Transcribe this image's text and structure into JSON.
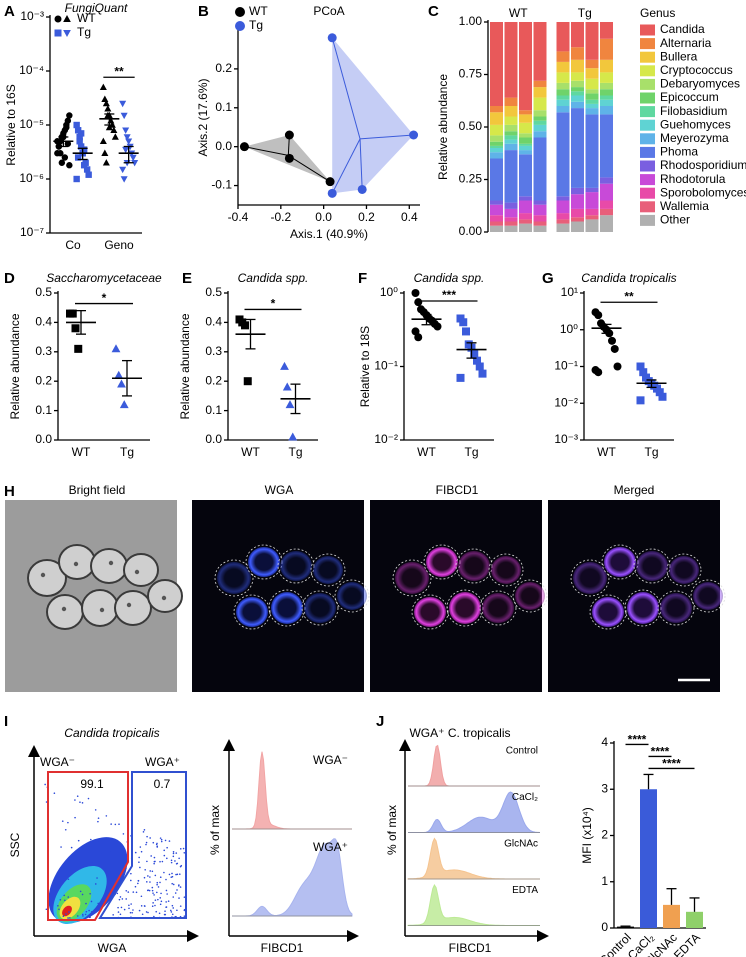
{
  "panel_labels": [
    "A",
    "B",
    "C",
    "D",
    "E",
    "F",
    "G",
    "H",
    "I",
    "J"
  ],
  "chart_data": [
    {
      "type": "dot",
      "title": "FungiQuant",
      "title_style": "italic",
      "y_label": "Relative to 16S",
      "log_y": true,
      "ylim": [
        1e-07,
        0.001
      ],
      "yticks": [
        {
          "value": 0.001,
          "label": "10⁻³"
        },
        {
          "value": 0.0001,
          "label": "10⁻⁴"
        },
        {
          "value": 1e-05,
          "label": "10⁻⁵"
        },
        {
          "value": 1e-06,
          "label": "10⁻⁶"
        },
        {
          "value": 1e-07,
          "label": "10⁻⁷"
        }
      ],
      "categories": [
        "Co",
        "Geno"
      ],
      "legend": "upper left",
      "series": [
        {
          "name": "WT",
          "color": "#000000",
          "markers": [
            "circle",
            "triangle"
          ],
          "values": [
            [
              3e-06,
              4e-06,
              5e-06,
              6e-06,
              7e-06,
              8e-06,
              1e-05,
              1.2e-05,
              1.5e-05,
              5e-06,
              4e-06,
              3e-06,
              2e-06,
              6e-06,
              2.5e-06,
              9e-06,
              4.5e-06,
              1.8e-06
            ],
            [
              5e-05,
              3e-05,
              2.5e-05,
              2e-05,
              1.5e-05,
              1.2e-05,
              1e-05,
              8e-06,
              6e-06,
              5e-06,
              3e-06,
              2e-06,
              1.5e-05,
              9e-06
            ]
          ],
          "means": [
            5e-06,
            1.3e-05
          ],
          "sems": [
            1e-06,
            3e-06
          ]
        },
        {
          "name": "Tg",
          "color": "#3b5bdb",
          "markers": [
            "square",
            "triangle-down"
          ],
          "values": [
            [
              1e-05,
              8e-06,
              6e-06,
              4e-06,
              3e-06,
              3.5e-06,
              2e-06,
              1.5e-06,
              1.2e-06,
              1e-06,
              2.5e-06,
              5e-06,
              7e-06,
              3e-06,
              1.8e-06
            ],
            [
              2.5e-05,
              1.5e-05,
              8e-06,
              6e-06,
              5e-06,
              4e-06,
              3e-06,
              2.5e-06,
              2e-06,
              1.5e-06,
              1e-06,
              3.5e-06,
              2e-06
            ]
          ],
          "means": [
            3e-06,
            3e-06
          ],
          "sems": [
            7e-07,
            1e-06
          ]
        }
      ],
      "annotations": [
        {
          "text": "**",
          "category": 1
        }
      ]
    },
    {
      "type": "scatter",
      "title": "PCoA",
      "x_label": "Axis.1 (40.9%)",
      "y_label": "Axis.2 (17.6%)",
      "xlim": [
        -0.4,
        0.45
      ],
      "ylim": [
        -0.15,
        0.3
      ],
      "xticks": [
        -0.4,
        -0.2,
        {
          "value": 0,
          "label": "0.0"
        },
        0.2,
        0.4
      ],
      "yticks": [
        -0.1,
        {
          "value": 0,
          "label": "0.0"
        },
        0.1,
        0.2
      ],
      "legend": "upper left",
      "series": [
        {
          "name": "WT",
          "color": "#000000",
          "fill": "#bfbfbf",
          "x": [
            -0.37,
            -0.16,
            -0.16,
            0.03
          ],
          "y": [
            0,
            0.03,
            -0.03,
            -0.09
          ]
        },
        {
          "name": "Tg",
          "color": "#3b5bdb",
          "fill": "#c5cdf5",
          "x": [
            0.04,
            0.42,
            0.18,
            0.04
          ],
          "y": [
            0.28,
            0.03,
            -0.11,
            -0.12
          ]
        }
      ]
    },
    {
      "type": "stacked_bar",
      "y_label": "Relative abundance",
      "legend_title": "Genus",
      "legend": "right",
      "ylim": [
        0,
        1
      ],
      "yticks": [
        {
          "value": 0,
          "label": "0.00"
        },
        0.25,
        {
          "value": 0.5,
          "label": "0.50"
        },
        0.75,
        {
          "value": 1,
          "label": "1.00"
        }
      ],
      "categories": [
        null,
        null,
        null,
        null,
        null,
        null,
        null,
        null
      ],
      "groups": [
        {
          "name": "WT",
          "size": 4
        },
        {
          "name": "Tg",
          "size": 4
        }
      ],
      "series": [
        {
          "name": "Candida",
          "color": "#e8595a",
          "values": [
            0.4,
            0.36,
            0.42,
            0.28,
            0.14,
            0.12,
            0.18,
            0.08
          ]
        },
        {
          "name": "Alternaria",
          "color": "#f0853f",
          "values": [
            0.03,
            0.04,
            0.02,
            0.03,
            0.05,
            0.06,
            0.04,
            0.1
          ]
        },
        {
          "name": "Bullera",
          "color": "#f2c73c",
          "values": [
            0.06,
            0.05,
            0.04,
            0.05,
            0.05,
            0.06,
            0.05,
            0.06
          ]
        },
        {
          "name": "Cryptococcus",
          "color": "#d6e84a",
          "values": [
            0.05,
            0.04,
            0.05,
            0.06,
            0.05,
            0.04,
            0.05,
            0.05
          ]
        },
        {
          "name": "Debaryomyces",
          "color": "#a8e06a",
          "values": [
            0.03,
            0.03,
            0.02,
            0.03,
            0.03,
            0.03,
            0.02,
            0.03
          ]
        },
        {
          "name": "Epicoccum",
          "color": "#6fd36a",
          "values": [
            0.02,
            0.02,
            0.03,
            0.02,
            0.03,
            0.02,
            0.03,
            0.03
          ]
        },
        {
          "name": "Filobasidium",
          "color": "#5fd8a0",
          "values": [
            0.01,
            0.02,
            0.01,
            0.02,
            0.02,
            0.02,
            0.02,
            0.02
          ]
        },
        {
          "name": "Guehomyces",
          "color": "#5fd3d3",
          "values": [
            0.02,
            0.02,
            0.02,
            0.03,
            0.03,
            0.03,
            0.02,
            0.03
          ]
        },
        {
          "name": "Meyerozyma",
          "color": "#5fb3e8",
          "values": [
            0.03,
            0.03,
            0.02,
            0.03,
            0.03,
            0.03,
            0.03,
            0.04
          ]
        },
        {
          "name": "Phoma",
          "color": "#5a78e6",
          "values": [
            0.2,
            0.25,
            0.2,
            0.3,
            0.4,
            0.38,
            0.35,
            0.3
          ]
        },
        {
          "name": "Rhodosporidium",
          "color": "#7a5fe0",
          "values": [
            0.02,
            0.03,
            0.02,
            0.02,
            0.02,
            0.03,
            0.02,
            0.03
          ]
        },
        {
          "name": "Rhodotorula",
          "color": "#c84ad8",
          "values": [
            0.05,
            0.04,
            0.06,
            0.05,
            0.06,
            0.07,
            0.08,
            0.08
          ]
        },
        {
          "name": "Sporobolomyces",
          "color": "#e84aa8",
          "values": [
            0.03,
            0.02,
            0.03,
            0.03,
            0.03,
            0.04,
            0.03,
            0.04
          ]
        },
        {
          "name": "Wallemia",
          "color": "#e85f7a",
          "values": [
            0.02,
            0.02,
            0.02,
            0.02,
            0.02,
            0.02,
            0.02,
            0.03
          ]
        },
        {
          "name": "Other",
          "color": "#b0b0b0",
          "values": [
            0.03,
            0.03,
            0.04,
            0.03,
            0.04,
            0.05,
            0.06,
            0.08
          ]
        }
      ]
    },
    {
      "type": "dot",
      "title": "Saccharomycetaceae",
      "title_style": "italic",
      "y_label": "Relative abundance",
      "ylim": [
        0,
        0.5
      ],
      "yticks": [
        {
          "value": 0,
          "label": "0.0"
        },
        0.1,
        0.2,
        0.3,
        0.4,
        0.5
      ],
      "categories": [
        "WT",
        "Tg"
      ],
      "groups": [
        {
          "color": "#000000",
          "marker": "square",
          "values": [
            0.43,
            0.43,
            0.38,
            0.31
          ],
          "mean": 0.4,
          "sem": 0.04
        },
        {
          "color": "#3b5bdb",
          "marker": "triangle",
          "values": [
            0.31,
            0.22,
            0.19,
            0.12
          ],
          "mean": 0.21,
          "sem": 0.06
        }
      ],
      "annotations": [
        {
          "text": "*"
        }
      ]
    },
    {
      "type": "dot",
      "title": "Candida spp.",
      "title_style": "italic",
      "y_label": "Relative abundance",
      "ylim": [
        0,
        0.5
      ],
      "yticks": [
        {
          "value": 0,
          "label": "0.0"
        },
        0.1,
        0.2,
        0.3,
        0.4,
        0.5
      ],
      "categories": [
        "WT",
        "Tg"
      ],
      "groups": [
        {
          "color": "#000000",
          "marker": "square",
          "values": [
            0.41,
            0.4,
            0.39,
            0.2
          ],
          "mean": 0.36,
          "sem": 0.05
        },
        {
          "color": "#3b5bdb",
          "marker": "triangle",
          "values": [
            0.25,
            0.18,
            0.12,
            0.01
          ],
          "mean": 0.14,
          "sem": 0.05
        }
      ],
      "annotations": [
        {
          "text": "*"
        }
      ]
    },
    {
      "type": "dot",
      "title": "Candida spp.",
      "title_style": "italic",
      "y_label": "Relative to 18S",
      "log_y": true,
      "ylim": [
        0.01,
        1
      ],
      "yticks": [
        {
          "value": 1,
          "label": "10⁰"
        },
        {
          "value": 0.1,
          "label": "10⁻¹"
        },
        {
          "value": 0.01,
          "label": "10⁻²"
        }
      ],
      "categories": [
        "WT",
        "Tg"
      ],
      "groups": [
        {
          "color": "#000000",
          "marker": "circle",
          "values": [
            1.0,
            0.75,
            0.6,
            0.55,
            0.5,
            0.45,
            0.42,
            0.38,
            0.35,
            0.3,
            0.25
          ],
          "mean": 0.44,
          "sem": 0.07
        },
        {
          "color": "#3b5bdb",
          "marker": "square",
          "values": [
            0.45,
            0.4,
            0.3,
            0.2,
            0.18,
            0.15,
            0.12,
            0.1,
            0.08,
            0.07
          ],
          "mean": 0.17,
          "sem": 0.04
        }
      ],
      "annotations": [
        {
          "text": "***"
        }
      ]
    },
    {
      "type": "dot",
      "title": "Candida tropicalis",
      "title_style": "italic",
      "log_y": true,
      "ylim": [
        0.001,
        10
      ],
      "yticks": [
        {
          "value": 10,
          "label": "10¹"
        },
        {
          "value": 1,
          "label": "10⁰"
        },
        {
          "value": 0.1,
          "label": "10⁻¹"
        },
        {
          "value": 0.01,
          "label": "10⁻²"
        },
        {
          "value": 0.001,
          "label": "10⁻³"
        }
      ],
      "categories": [
        "WT",
        "Tg"
      ],
      "groups": [
        {
          "color": "#000000",
          "marker": "circle",
          "values": [
            3.0,
            2.5,
            1.5,
            1.2,
            1.0,
            0.8,
            0.5,
            0.3,
            0.1,
            0.08,
            0.07
          ],
          "mean": 1.1,
          "sem": 0.3
        },
        {
          "color": "#3b5bdb",
          "marker": "square",
          "values": [
            0.1,
            0.07,
            0.05,
            0.04,
            0.035,
            0.03,
            0.025,
            0.02,
            0.015,
            0.012
          ],
          "mean": 0.035,
          "sem": 0.008
        }
      ],
      "annotations": [
        {
          "text": "**"
        }
      ]
    },
    {
      "type": "bar",
      "y_label": "MFI (x10⁴)",
      "categories": [
        "Control",
        "CaCl₂",
        "GlcNAc",
        "EDTA"
      ],
      "values": [
        0.03,
        3.0,
        0.5,
        0.35
      ],
      "errors": [
        0.01,
        0.32,
        0.35,
        0.3
      ],
      "colors": [
        "#000000",
        "#3a5bd9",
        "#f0a050",
        "#8fd06a"
      ],
      "ylim": [
        0,
        4
      ],
      "yticks": [
        0,
        1,
        2,
        3,
        4
      ],
      "annotations": [
        {
          "text": "****",
          "pair": [
            0,
            1
          ]
        },
        {
          "text": "****",
          "pair": [
            1,
            2
          ]
        },
        {
          "text": "****",
          "pair": [
            1,
            3
          ]
        }
      ]
    }
  ],
  "microscopy": {
    "titles": [
      "Bright field",
      "WGA",
      "FIBCD1",
      "Merged"
    ]
  },
  "flow_I": {
    "title": "Candida tropicalis",
    "x_label": "WGA",
    "y_label": "SSC",
    "gates": [
      {
        "label": "WGA⁻",
        "percent": 99.1,
        "color": "#e03030"
      },
      {
        "label": "WGA⁺",
        "percent": 0.7,
        "color": "#3050d0"
      }
    ],
    "histogram": {
      "x_label": "FIBCD1",
      "y_label": "% of max",
      "rows": [
        {
          "label": "WGA⁻",
          "color": "#f2a5a5"
        },
        {
          "label": "WGA⁺",
          "color": "#a8b4ee"
        }
      ]
    }
  },
  "flow_J": {
    "title": "WGA⁺ C. tropicalis",
    "x_label": "FIBCD1",
    "y_label": "% of max",
    "rows": [
      {
        "label": "Control",
        "color": "#f0a0a0"
      },
      {
        "label": "CaCl₂",
        "color": "#9aa8ec"
      },
      {
        "label": "GlcNAc",
        "color": "#f5c490"
      },
      {
        "label": "EDTA",
        "color": "#bdea96"
      }
    ]
  }
}
